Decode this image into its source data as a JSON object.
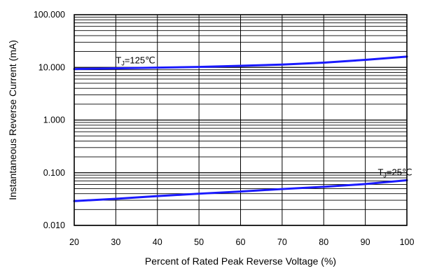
{
  "chart_data": {
    "type": "line",
    "title": "",
    "xlabel": "Percent of Rated Peak Reverse Voltage (%)",
    "ylabel": "Instantaneous Reverse Current (mA)",
    "x_scale": "linear",
    "y_scale": "log",
    "xlim": [
      20,
      100
    ],
    "ylim": [
      0.01,
      100
    ],
    "x_ticks": [
      20,
      30,
      40,
      50,
      60,
      70,
      80,
      90,
      100
    ],
    "x_tick_labels": [
      "20",
      "30",
      "40",
      "50",
      "60",
      "70",
      "80",
      "90",
      "100"
    ],
    "y_ticks": [
      0.01,
      0.1,
      1,
      10,
      100
    ],
    "y_tick_labels": [
      "0.010",
      "0.100",
      "1.000",
      "10.000",
      "100.000"
    ],
    "grid": true,
    "series": [
      {
        "name": "TJ=125℃",
        "label_parts": {
          "main": "T",
          "sub": "J",
          "rest": "=125℃"
        },
        "label_at": [
          30,
          10
        ],
        "color": "#1a1aff",
        "x": [
          20,
          30,
          40,
          50,
          60,
          70,
          80,
          90,
          100
        ],
        "y": [
          9.3,
          9.6,
          9.9,
          10.2,
          10.7,
          11.3,
          12.3,
          13.9,
          16.0
        ]
      },
      {
        "name": "TJ=25℃",
        "label_parts": {
          "main": "T",
          "sub": "J",
          "rest": "=25℃"
        },
        "label_at": [
          93,
          0.074
        ],
        "color": "#1a1aff",
        "x": [
          20,
          30,
          40,
          50,
          60,
          70,
          80,
          90,
          100
        ],
        "y": [
          0.029,
          0.032,
          0.036,
          0.04,
          0.044,
          0.049,
          0.054,
          0.061,
          0.072
        ]
      }
    ]
  }
}
